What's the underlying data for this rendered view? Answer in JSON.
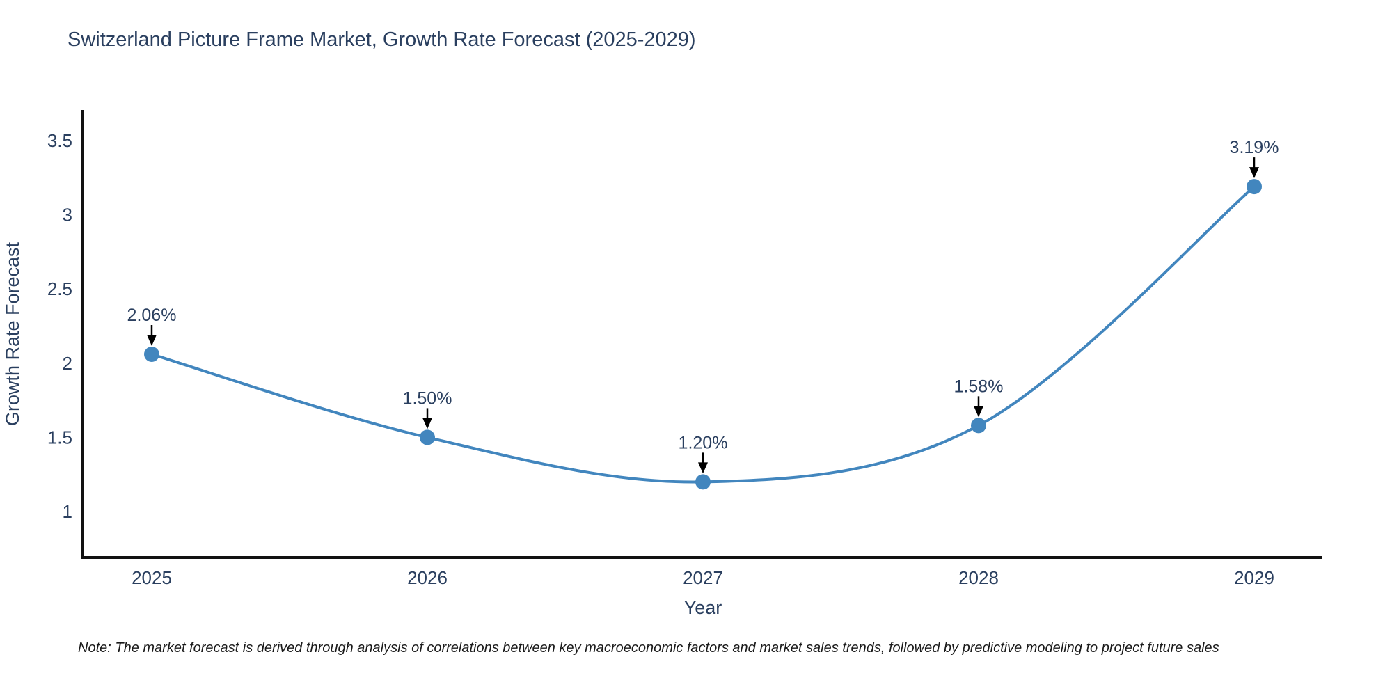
{
  "page": {
    "background": "#ffffff"
  },
  "chart_data": {
    "type": "line",
    "title": "Switzerland Picture Frame Market, Growth Rate Forecast (2025-2029)",
    "xlabel": "Year",
    "ylabel": "Growth Rate Forecast",
    "categories": [
      "2025",
      "2026",
      "2027",
      "2028",
      "2029"
    ],
    "series": [
      {
        "name": "Growth Rate Forecast",
        "values": [
          2.06,
          1.5,
          1.2,
          1.58,
          3.19
        ],
        "point_labels": [
          "2.06%",
          "1.50%",
          "1.20%",
          "1.58%",
          "3.19%"
        ]
      }
    ],
    "yticks": [
      1,
      1.5,
      2,
      2.5,
      3,
      3.5
    ],
    "ylim": [
      0.69,
      3.71
    ],
    "grid": false,
    "legend_position": "none",
    "line_shape": "spline",
    "line_color": "#4286be",
    "marker_color": "#4286be",
    "annotation_arrow_color": "#000000",
    "title_color": "#2a3f5f",
    "axis_line_color": "#111111"
  },
  "note": {
    "text": "Note: The market forecast is derived through analysis of correlations between key macroeconomic factors and market sales trends, followed by predictive modeling to project future sales"
  }
}
